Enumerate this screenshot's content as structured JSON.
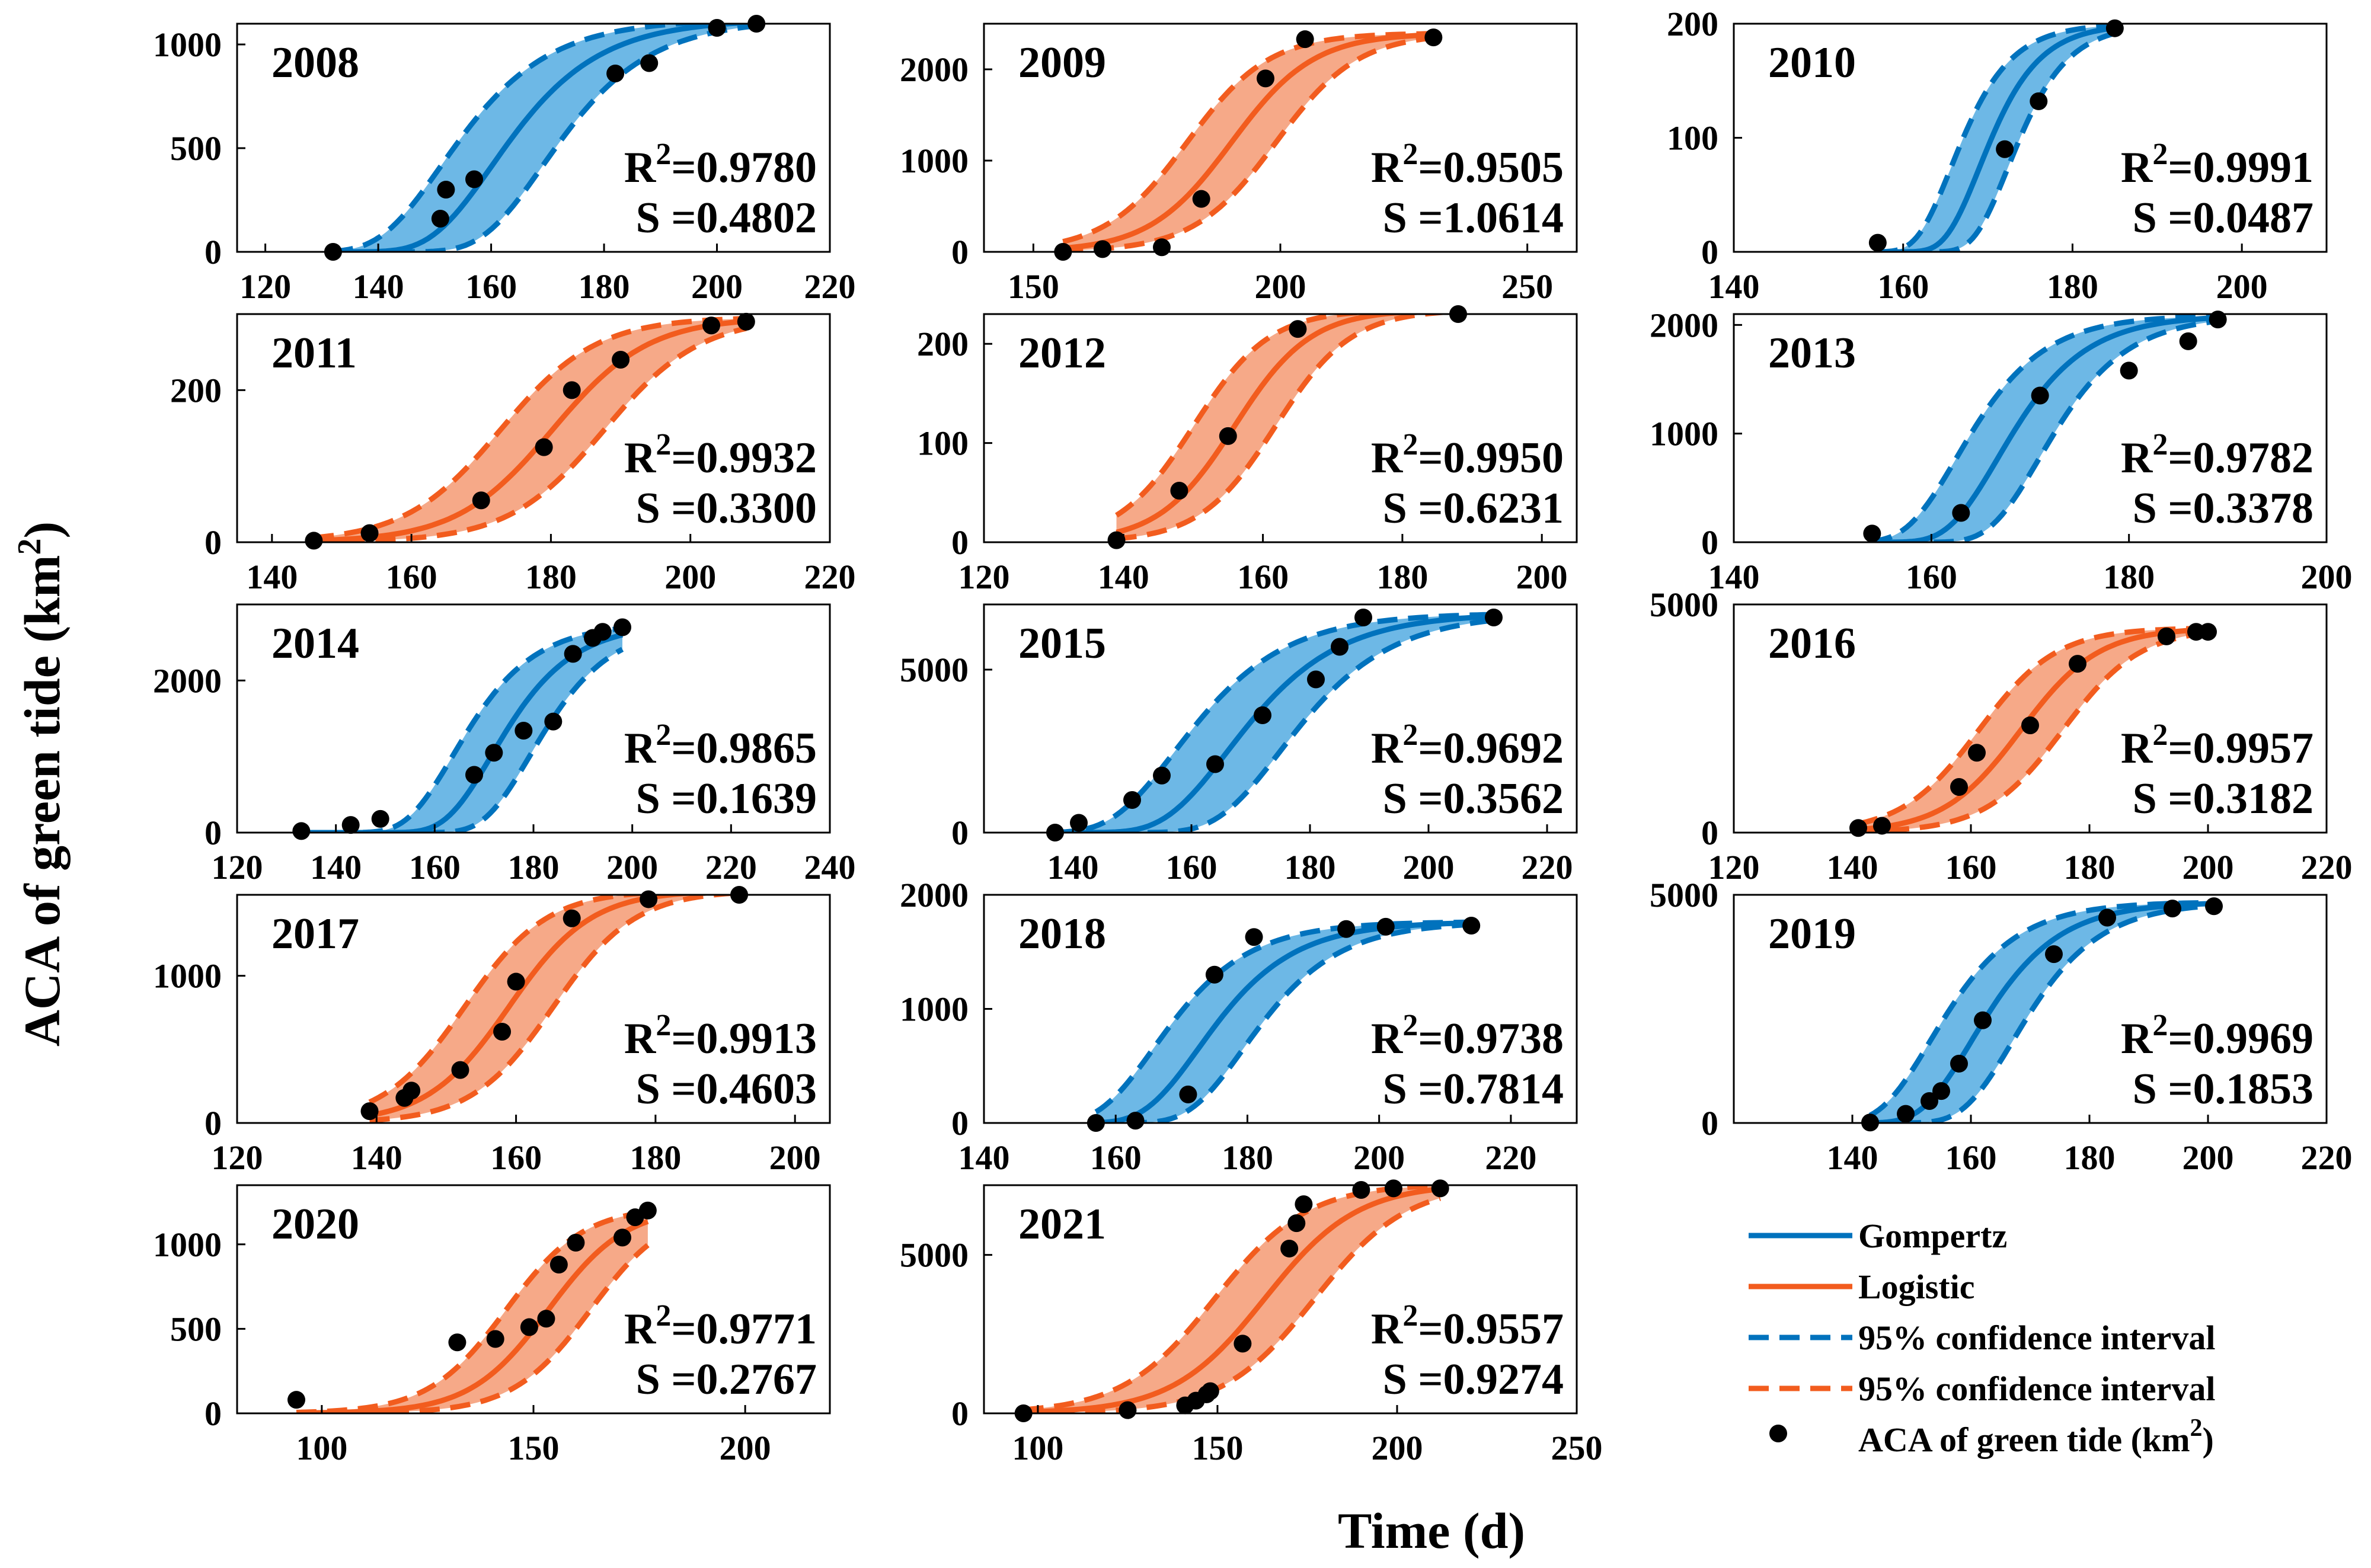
{
  "figure": {
    "xlabel": "Time (d)",
    "ylabel": "ACA of green tide (km",
    "ylabel_sup": "2",
    "ylabel_close": ")"
  },
  "legend": {
    "entries": [
      {
        "label": "Gompertz",
        "kind": "line",
        "color": "#0072BD"
      },
      {
        "label": "Logistic",
        "kind": "line",
        "color": "#F25C1E"
      },
      {
        "label": "95% confidence interval",
        "kind": "dash",
        "color": "#0072BD"
      },
      {
        "label": "95% confidence interval",
        "kind": "dash",
        "color": "#F25C1E"
      },
      {
        "label": "ACA of green tide (km",
        "sup": "2",
        "close": ")",
        "kind": "dot",
        "color": "#000000"
      }
    ]
  },
  "colors": {
    "gompertz": "#0072BD",
    "gompertz_fill": "#6DB8E6",
    "logistic": "#F25C1E",
    "logistic_fill": "#F6A988",
    "points": "#000000"
  },
  "chart_data": [
    {
      "title": "2008",
      "type": "line",
      "model": "Gompertz",
      "r2_label": "R",
      "r2_sup": "2",
      "r2_value": "=0.9780",
      "s_text": "S =0.4802",
      "xlim": [
        115,
        220
      ],
      "ylim": [
        0,
        1100
      ],
      "xticks": [
        120,
        140,
        160,
        180,
        200,
        220
      ],
      "yticks": [
        0,
        500,
        1000
      ],
      "points": [
        [
          132,
          0
        ],
        [
          151,
          160
        ],
        [
          152,
          300
        ],
        [
          157,
          350
        ],
        [
          182,
          860
        ],
        [
          188,
          910
        ],
        [
          200,
          1080
        ],
        [
          207,
          1100
        ]
      ]
    },
    {
      "title": "2009",
      "type": "line",
      "model": "Logistic",
      "r2_label": "R",
      "r2_sup": "2",
      "r2_value": "=0.9505",
      "s_text": "S =1.0614",
      "xlim": [
        140,
        260
      ],
      "ylim": [
        0,
        2500
      ],
      "xticks": [
        150,
        200,
        250
      ],
      "yticks": [
        0,
        1000,
        2000
      ],
      "points": [
        [
          156,
          0
        ],
        [
          164,
          30
        ],
        [
          176,
          50
        ],
        [
          184,
          580
        ],
        [
          197,
          1900
        ],
        [
          205,
          2330
        ],
        [
          231,
          2350
        ]
      ]
    },
    {
      "title": "2010",
      "type": "line",
      "model": "Gompertz",
      "r2_label": "R",
      "r2_sup": "2",
      "r2_value": "=0.9991",
      "s_text": "S =0.0487",
      "xlim": [
        140,
        210
      ],
      "ylim": [
        0,
        200
      ],
      "xticks": [
        140,
        160,
        180,
        200
      ],
      "yticks": [
        0,
        100,
        200
      ],
      "points": [
        [
          157,
          8
        ],
        [
          172,
          90
        ],
        [
          176,
          132
        ],
        [
          185,
          196
        ]
      ]
    },
    {
      "title": "2011",
      "type": "line",
      "model": "Logistic",
      "r2_label": "R",
      "r2_sup": "2",
      "r2_value": "=0.9932",
      "s_text": "S =0.3300",
      "xlim": [
        135,
        220
      ],
      "ylim": [
        0,
        300
      ],
      "xticks": [
        140,
        160,
        180,
        200,
        220
      ],
      "yticks": [
        0,
        200
      ],
      "points": [
        [
          146,
          2
        ],
        [
          154,
          12
        ],
        [
          170,
          55
        ],
        [
          179,
          125
        ],
        [
          183,
          200
        ],
        [
          190,
          240
        ],
        [
          203,
          285
        ],
        [
          208,
          290
        ]
      ]
    },
    {
      "title": "2012",
      "type": "line",
      "model": "Logistic",
      "r2_label": "R",
      "r2_sup": "2",
      "r2_value": "=0.9950",
      "s_text": "S =0.6231",
      "xlim": [
        120,
        205
      ],
      "ylim": [
        0,
        230
      ],
      "xticks": [
        120,
        140,
        160,
        180,
        200
      ],
      "yticks": [
        0,
        100,
        200
      ],
      "points": [
        [
          139,
          2
        ],
        [
          148,
          52
        ],
        [
          155,
          107
        ],
        [
          165,
          215
        ],
        [
          188,
          230
        ]
      ]
    },
    {
      "title": "2013",
      "type": "line",
      "model": "Gompertz",
      "r2_label": "R",
      "r2_sup": "2",
      "r2_value": "=0.9782",
      "s_text": "S =0.3378",
      "xlim": [
        140,
        200
      ],
      "ylim": [
        0,
        2100
      ],
      "xticks": [
        140,
        160,
        180,
        200
      ],
      "yticks": [
        0,
        1000,
        2000
      ],
      "points": [
        [
          154,
          80
        ],
        [
          163,
          270
        ],
        [
          171,
          1350
        ],
        [
          180,
          1580
        ],
        [
          186,
          1850
        ],
        [
          189,
          2050
        ]
      ]
    },
    {
      "title": "2014",
      "type": "line",
      "model": "Gompertz",
      "r2_label": "R",
      "r2_sup": "2",
      "r2_value": "=0.9865",
      "s_text": "S =0.1639",
      "xlim": [
        120,
        240
      ],
      "ylim": [
        0,
        3000
      ],
      "xticks": [
        120,
        140,
        160,
        180,
        200,
        220,
        240
      ],
      "yticks": [
        0,
        2000
      ],
      "points": [
        [
          133,
          20
        ],
        [
          143,
          100
        ],
        [
          149,
          180
        ],
        [
          168,
          760
        ],
        [
          172,
          1050
        ],
        [
          178,
          1340
        ],
        [
          184,
          1460
        ],
        [
          188,
          2350
        ],
        [
          192,
          2560
        ],
        [
          194,
          2640
        ],
        [
          198,
          2700
        ]
      ]
    },
    {
      "title": "2015",
      "type": "line",
      "model": "Gompertz",
      "r2_label": "R",
      "r2_sup": "2",
      "r2_value": "=0.9692",
      "s_text": "S =0.3562",
      "xlim": [
        125,
        225
      ],
      "ylim": [
        0,
        7000
      ],
      "xticks": [
        140,
        160,
        180,
        200,
        220
      ],
      "yticks": [
        0,
        5000
      ],
      "points": [
        [
          137,
          0
        ],
        [
          141,
          300
        ],
        [
          150,
          1000
        ],
        [
          155,
          1750
        ],
        [
          164,
          2100
        ],
        [
          172,
          3600
        ],
        [
          181,
          4700
        ],
        [
          185,
          5700
        ],
        [
          189,
          6600
        ],
        [
          211,
          6600
        ]
      ]
    },
    {
      "title": "2016",
      "type": "line",
      "model": "Logistic",
      "r2_label": "R",
      "r2_sup": "2",
      "r2_value": "=0.9957",
      "s_text": "S =0.3182",
      "xlim": [
        120,
        220
      ],
      "ylim": [
        0,
        5000
      ],
      "xticks": [
        120,
        140,
        160,
        180,
        200,
        220
      ],
      "yticks": [
        0,
        5000
      ],
      "points": [
        [
          141,
          100
        ],
        [
          145,
          150
        ],
        [
          158,
          1000
        ],
        [
          161,
          1750
        ],
        [
          170,
          2350
        ],
        [
          178,
          3700
        ],
        [
          193,
          4300
        ],
        [
          198,
          4400
        ],
        [
          200,
          4400
        ]
      ]
    },
    {
      "title": "2017",
      "type": "line",
      "model": "Logistic",
      "r2_label": "R",
      "r2_sup": "2",
      "r2_value": "=0.9913",
      "s_text": "S =0.4603",
      "xlim": [
        120,
        205
      ],
      "ylim": [
        0,
        1550
      ],
      "xticks": [
        120,
        140,
        160,
        180,
        200
      ],
      "yticks": [
        0,
        1000
      ],
      "points": [
        [
          139,
          80
        ],
        [
          144,
          170
        ],
        [
          145,
          220
        ],
        [
          152,
          360
        ],
        [
          158,
          620
        ],
        [
          160,
          960
        ],
        [
          168,
          1390
        ],
        [
          179,
          1520
        ],
        [
          192,
          1550
        ]
      ]
    },
    {
      "title": "2018",
      "type": "line",
      "model": "Gompertz",
      "r2_label": "R",
      "r2_sup": "2",
      "r2_value": "=0.9738",
      "s_text": "S =0.7814",
      "xlim": [
        140,
        230
      ],
      "ylim": [
        0,
        2000
      ],
      "xticks": [
        140,
        160,
        180,
        200,
        220
      ],
      "yticks": [
        0,
        1000,
        2000
      ],
      "points": [
        [
          157,
          0
        ],
        [
          163,
          20
        ],
        [
          171,
          250
        ],
        [
          175,
          1300
        ],
        [
          181,
          1630
        ],
        [
          195,
          1700
        ],
        [
          201,
          1720
        ],
        [
          214,
          1730
        ]
      ]
    },
    {
      "title": "2019",
      "type": "line",
      "model": "Gompertz",
      "r2_label": "R",
      "r2_sup": "2",
      "r2_value": "=0.9969",
      "s_text": "S =0.1853",
      "xlim": [
        120,
        220
      ],
      "ylim": [
        0,
        5000
      ],
      "xticks": [
        140,
        160,
        180,
        200,
        220
      ],
      "yticks": [
        0,
        5000
      ],
      "points": [
        [
          143,
          10
        ],
        [
          149,
          200
        ],
        [
          153,
          480
        ],
        [
          155,
          700
        ],
        [
          158,
          1300
        ],
        [
          162,
          2250
        ],
        [
          174,
          3700
        ],
        [
          183,
          4500
        ],
        [
          194,
          4700
        ],
        [
          201,
          4750
        ]
      ]
    },
    {
      "title": "2020",
      "type": "line",
      "model": "Logistic",
      "r2_label": "R",
      "r2_sup": "2",
      "r2_value": "=0.9771",
      "s_text": "S =0.2767",
      "xlim": [
        80,
        220
      ],
      "ylim": [
        0,
        1350
      ],
      "xticks": [
        100,
        150,
        200
      ],
      "yticks": [
        0,
        500,
        1000
      ],
      "points": [
        [
          94,
          80
        ],
        [
          132,
          420
        ],
        [
          141,
          440
        ],
        [
          149,
          510
        ],
        [
          153,
          560
        ],
        [
          156,
          880
        ],
        [
          160,
          1010
        ],
        [
          171,
          1040
        ],
        [
          174,
          1160
        ],
        [
          177,
          1200
        ]
      ]
    },
    {
      "title": "2021",
      "type": "line",
      "model": "Logistic",
      "r2_label": "R",
      "r2_sup": "2",
      "r2_value": "=0.9557",
      "s_text": "S =0.9274",
      "xlim": [
        85,
        250
      ],
      "ylim": [
        0,
        7200
      ],
      "xticks": [
        100,
        150,
        200,
        250
      ],
      "yticks": [
        0,
        5000
      ],
      "points": [
        [
          96,
          0
        ],
        [
          125,
          100
        ],
        [
          141,
          250
        ],
        [
          144,
          400
        ],
        [
          147,
          600
        ],
        [
          148,
          700
        ],
        [
          157,
          2200
        ],
        [
          170,
          5200
        ],
        [
          172,
          6000
        ],
        [
          174,
          6600
        ],
        [
          190,
          7050
        ],
        [
          199,
          7100
        ],
        [
          212,
          7100
        ]
      ]
    }
  ]
}
